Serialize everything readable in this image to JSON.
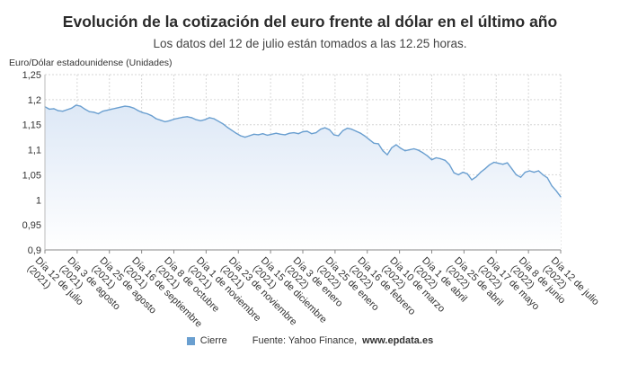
{
  "chart_data": {
    "type": "area",
    "title": "Evolución de la cotización del euro frente al dólar en el último año",
    "subtitle": "Los datos del 12 de julio están tomados a las 12.25 horas.",
    "ylabel": "Euro/Dólar estadounidense (Unidades)",
    "ylim": [
      0.9,
      1.25
    ],
    "yticks": [
      "0,9",
      "0,95",
      "1",
      "1,05",
      "1,1",
      "1,15",
      "1,2",
      "1,25"
    ],
    "grid": true,
    "xticks": [
      [
        "Día 12 de julio",
        "(2021)"
      ],
      [
        "Día 3 de agosto",
        "(2021)"
      ],
      [
        "Día 25 de agosto",
        "(2021)"
      ],
      [
        "Día 16 de septiembre",
        "(2021)"
      ],
      [
        "Día 8 de octubre",
        "(2021)"
      ],
      [
        "Día 1 de noviembre",
        "(2021)"
      ],
      [
        "Día 23 de noviembre",
        "(2021)"
      ],
      [
        "Día 15 de diciembre",
        "(2021)"
      ],
      [
        "Día 3 de enero",
        "(2022)"
      ],
      [
        "Día 25 de enero",
        "(2022)"
      ],
      [
        "Día 16 de febrero",
        "(2022)"
      ],
      [
        "Día 10 de marzo",
        "(2022)"
      ],
      [
        "Día 1 de abril",
        "(2022)"
      ],
      [
        "Día 25 de abril",
        "(2022)"
      ],
      [
        "Día 17 de mayo",
        "(2022)"
      ],
      [
        "Día 8 de junio",
        "(2022)"
      ],
      [
        "Día 12 de julio",
        "(2022)"
      ]
    ],
    "series": [
      {
        "name": "Cierre",
        "color": "#6a9fd0",
        "values": [
          1.186,
          1.181,
          1.182,
          1.178,
          1.177,
          1.18,
          1.183,
          1.189,
          1.187,
          1.181,
          1.176,
          1.175,
          1.172,
          1.177,
          1.179,
          1.181,
          1.183,
          1.185,
          1.187,
          1.186,
          1.183,
          1.178,
          1.174,
          1.172,
          1.168,
          1.162,
          1.159,
          1.156,
          1.158,
          1.161,
          1.163,
          1.165,
          1.166,
          1.164,
          1.16,
          1.158,
          1.16,
          1.164,
          1.162,
          1.157,
          1.152,
          1.145,
          1.139,
          1.133,
          1.128,
          1.125,
          1.128,
          1.131,
          1.13,
          1.132,
          1.129,
          1.131,
          1.133,
          1.131,
          1.13,
          1.133,
          1.134,
          1.132,
          1.136,
          1.137,
          1.132,
          1.134,
          1.141,
          1.144,
          1.14,
          1.13,
          1.128,
          1.138,
          1.143,
          1.141,
          1.137,
          1.133,
          1.127,
          1.12,
          1.113,
          1.112,
          1.098,
          1.09,
          1.104,
          1.11,
          1.103,
          1.098,
          1.1,
          1.102,
          1.099,
          1.094,
          1.088,
          1.08,
          1.084,
          1.082,
          1.079,
          1.07,
          1.054,
          1.05,
          1.055,
          1.052,
          1.04,
          1.046,
          1.055,
          1.062,
          1.07,
          1.075,
          1.073,
          1.071,
          1.074,
          1.062,
          1.05,
          1.045,
          1.055,
          1.058,
          1.055,
          1.058,
          1.05,
          1.044,
          1.028,
          1.018,
          1.006
        ]
      }
    ]
  },
  "footer": {
    "legend_label": "Cierre",
    "source_text": "Fuente: Yahoo Finance,",
    "source_url": "www.epdata.es"
  }
}
